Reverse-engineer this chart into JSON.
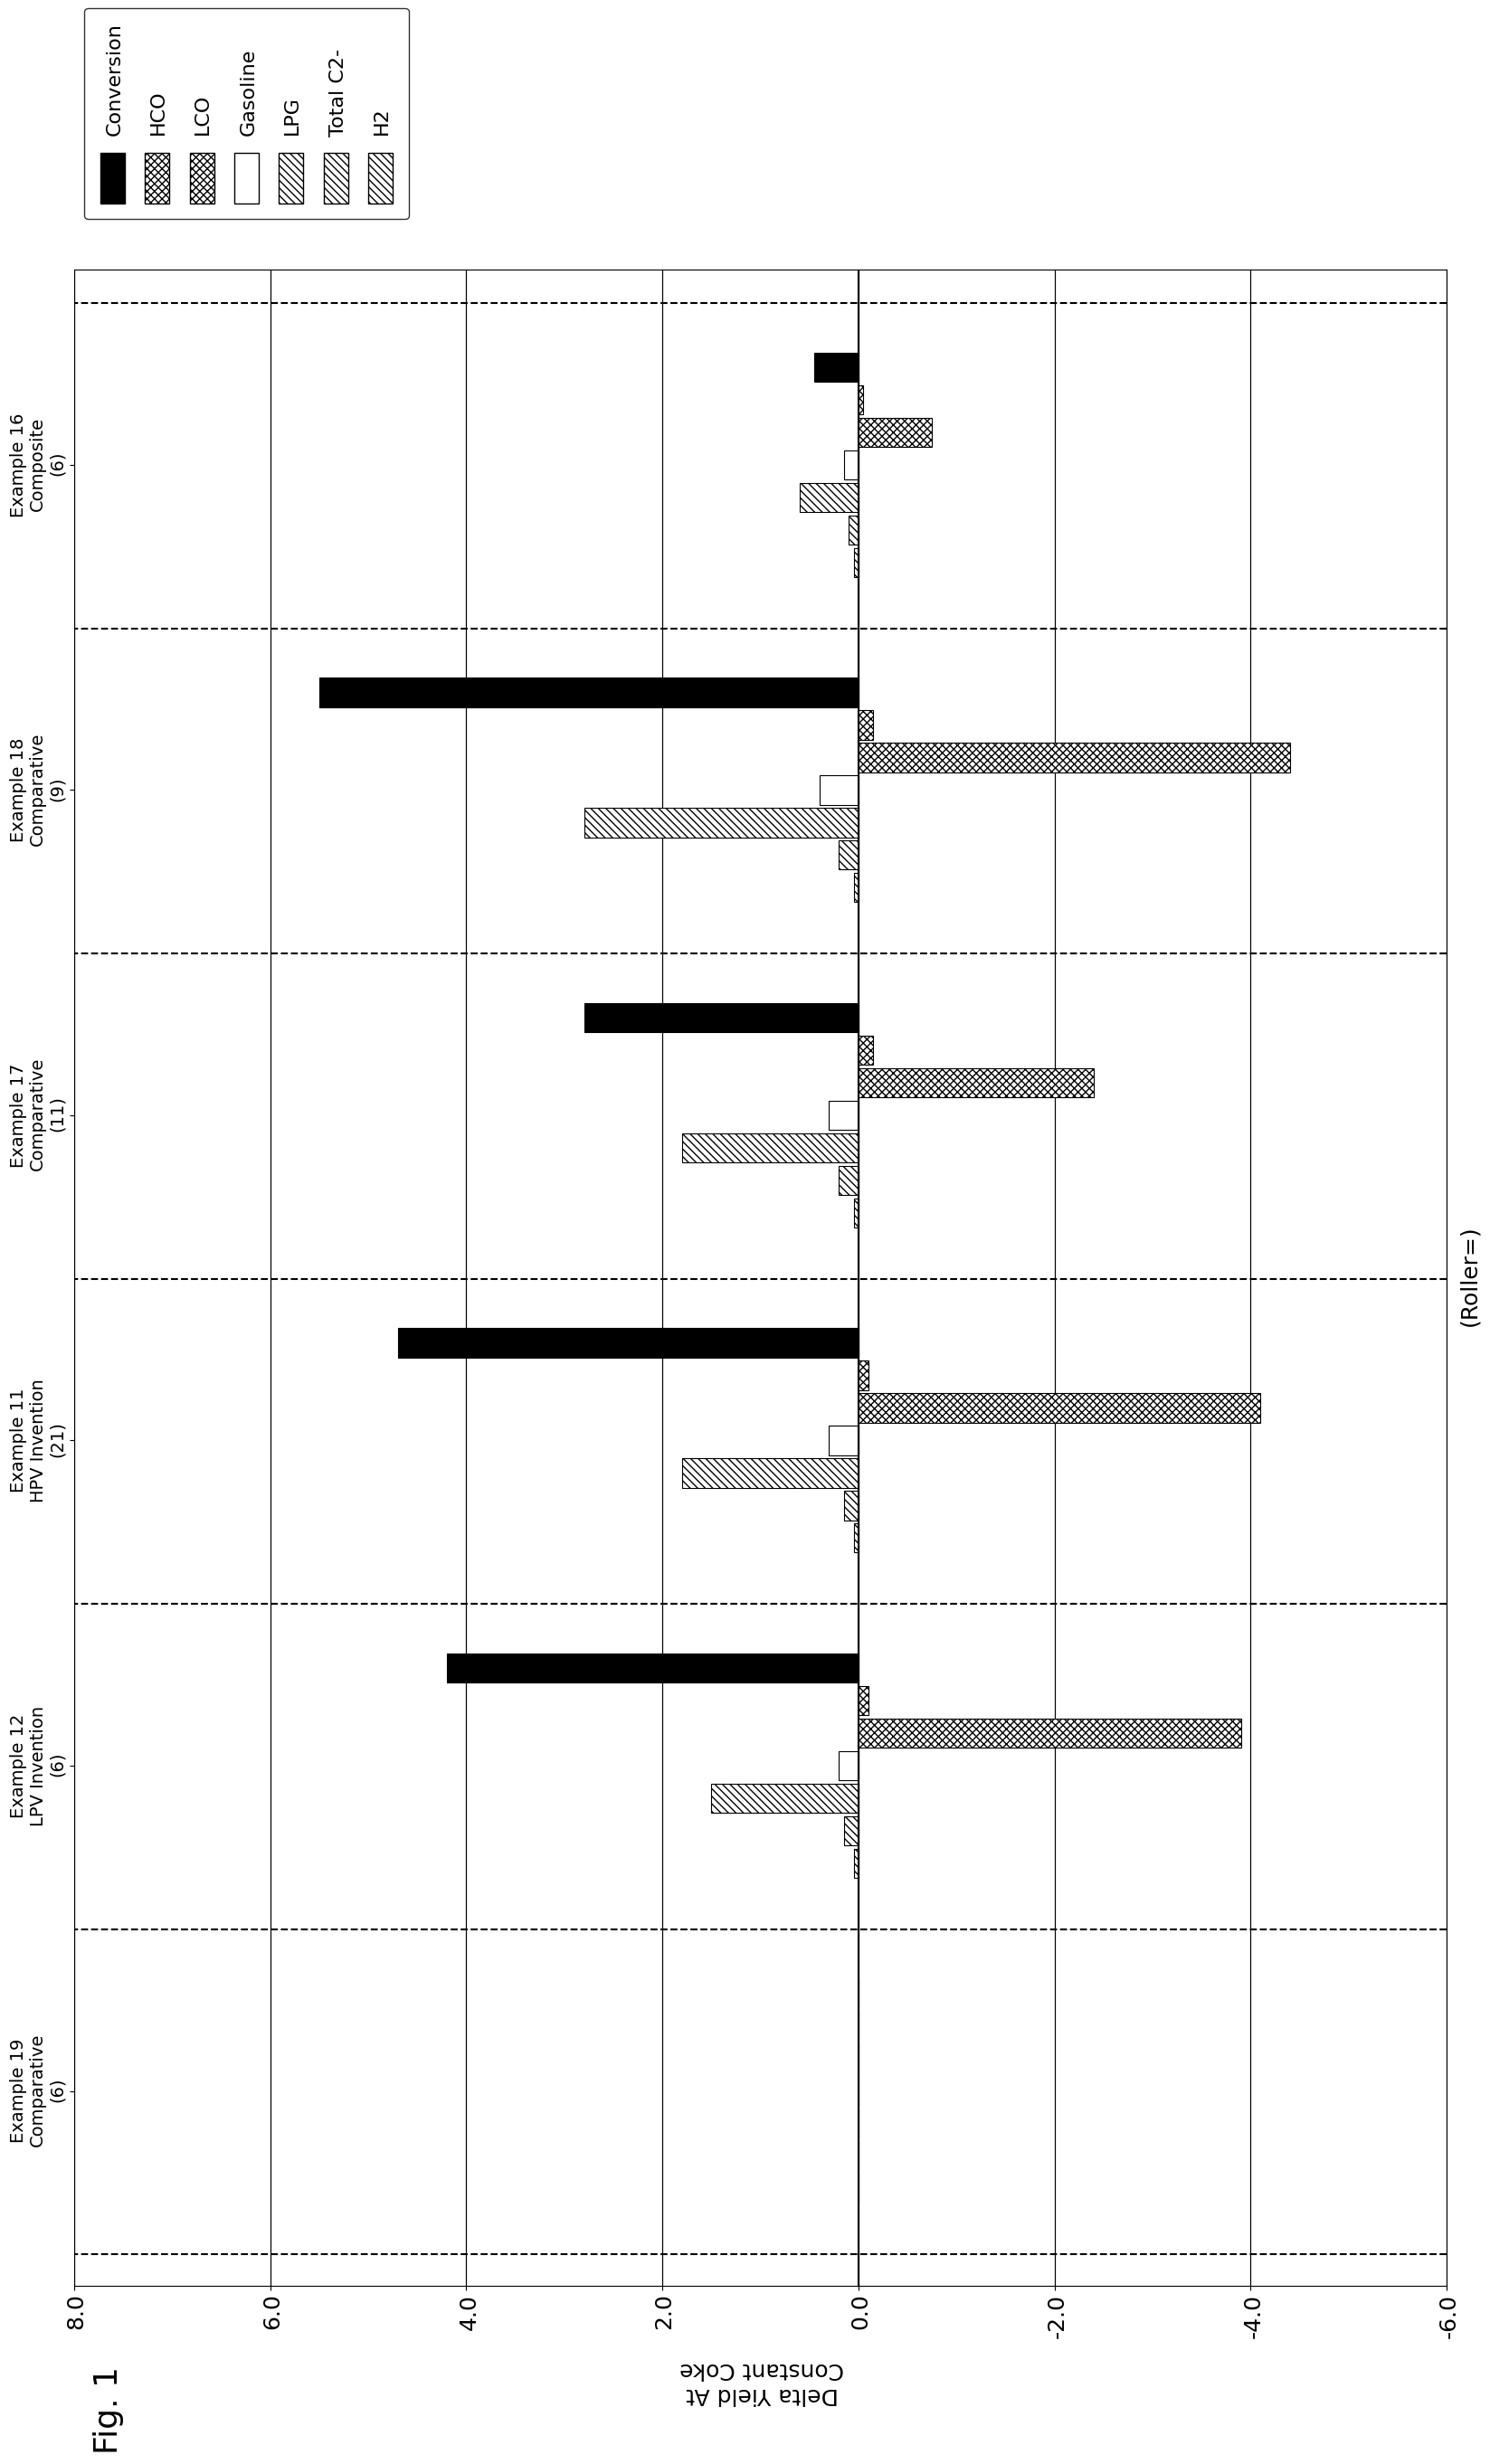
{
  "title": "Fig. 1",
  "ylabel": "Delta Yield At\nConstant Coke",
  "xlabel_bottom": "(Roller=)",
  "ylim": [
    -6.0,
    8.0
  ],
  "yticks": [
    -6.0,
    -4.0,
    -2.0,
    0.0,
    2.0,
    4.0,
    6.0,
    8.0
  ],
  "groups": [
    "Example 19\nComparative\n(6)",
    "Example 12\nLPV Invention\n(6)",
    "Example 11\nHPV Invention\n(21)",
    "Example 17\nComparative\n(11)",
    "Example 18\nComparative\n(9)",
    "Example 16\nComposite\n(6)"
  ],
  "series_data": {
    "H2": [
      0.0,
      0.05,
      0.05,
      0.05,
      0.05,
      0.05
    ],
    "Total C2-": [
      0.0,
      0.15,
      0.15,
      0.2,
      0.2,
      0.1
    ],
    "LPG": [
      0.0,
      1.5,
      1.8,
      1.8,
      2.8,
      0.6
    ],
    "Gasoline": [
      0.0,
      0.2,
      0.3,
      0.3,
      0.4,
      0.15
    ],
    "LCO": [
      0.0,
      -3.9,
      -4.1,
      -2.4,
      -4.4,
      -0.75
    ],
    "HCO": [
      0.0,
      -0.1,
      -0.1,
      -0.15,
      -0.15,
      -0.05
    ],
    "Conversion": [
      0.0,
      4.2,
      4.7,
      2.8,
      5.5,
      0.45
    ]
  },
  "series_order": [
    "H2",
    "Total C2-",
    "LPG",
    "Gasoline",
    "LCO",
    "HCO",
    "Conversion"
  ],
  "colors_map": {
    "H2": {
      "fc": "white",
      "ec": "black",
      "hatch": "////"
    },
    "Total C2-": {
      "fc": "white",
      "ec": "black",
      "hatch": "////"
    },
    "LPG": {
      "fc": "white",
      "ec": "black",
      "hatch": "////"
    },
    "Gasoline": {
      "fc": "white",
      "ec": "black",
      "hatch": ""
    },
    "LCO": {
      "fc": "white",
      "ec": "black",
      "hatch": "xxxx"
    },
    "HCO": {
      "fc": "white",
      "ec": "black",
      "hatch": "xxxx"
    },
    "Conversion": {
      "fc": "black",
      "ec": "black",
      "hatch": ""
    }
  },
  "legend_hatches": {
    "H2": "////",
    "Total C2-": "////",
    "LPG": "////",
    "Gasoline": "",
    "LCO": "xxxx",
    "HCO": "xxxx",
    "Conversion": ""
  },
  "legend_fc": {
    "H2": "white",
    "Total C2-": "white",
    "LPG": "white",
    "Gasoline": "white",
    "LCO": "white",
    "HCO": "white",
    "Conversion": "black"
  }
}
